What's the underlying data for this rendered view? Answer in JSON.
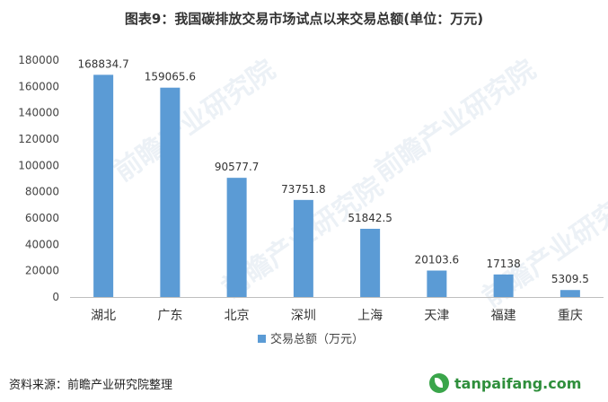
{
  "title": "图表9：我国碳排放交易市场试点以来交易总额(单位：万元)",
  "footer": {
    "source": "资料来源：前瞻产业研究院整理",
    "site": "tanpaifang.com"
  },
  "watermark": {
    "text": "前瞻产业研究院"
  },
  "colors": {
    "bar": "#5b9bd5",
    "axis": "#bfbfbf"
  },
  "chart_data": {
    "type": "bar",
    "categories": [
      "湖北",
      "广东",
      "北京",
      "深圳",
      "上海",
      "天津",
      "福建",
      "重庆"
    ],
    "series": [
      {
        "name": "交易总额（万元）",
        "values": [
          168834.7,
          159065.6,
          90577.7,
          73751.8,
          51842.5,
          20103.6,
          17138,
          5309.5
        ],
        "labels": [
          "168834.7",
          "159065.6",
          "90577.7",
          "73751.8",
          "51842.5",
          "20103.6",
          "17138",
          "5309.5"
        ]
      }
    ],
    "ylim": [
      0,
      180000
    ],
    "yticks": [
      0,
      20000,
      40000,
      60000,
      80000,
      100000,
      120000,
      140000,
      160000,
      180000
    ],
    "grid": false,
    "legend": "bottom"
  }
}
